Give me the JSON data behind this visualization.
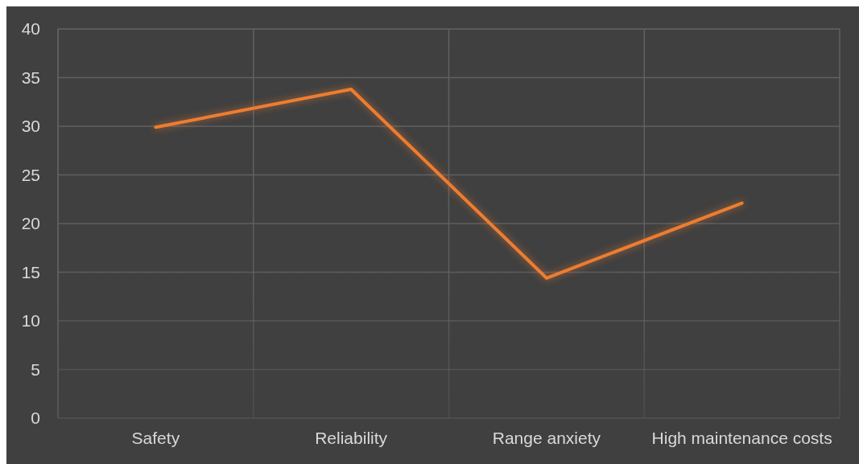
{
  "chart_data": {
    "type": "line",
    "categories": [
      "Safety",
      "Reliability",
      "Range anxiety",
      "High maintenance costs"
    ],
    "series": [
      {
        "color": "#ed7d31",
        "values": [
          29.9,
          33.8,
          14.4,
          22.1
        ]
      }
    ],
    "ylim": [
      0,
      40
    ],
    "yticks": [
      0,
      5,
      10,
      15,
      20,
      25,
      30,
      35,
      40
    ],
    "grid": true,
    "marker": "none",
    "line_style": "solid"
  }
}
